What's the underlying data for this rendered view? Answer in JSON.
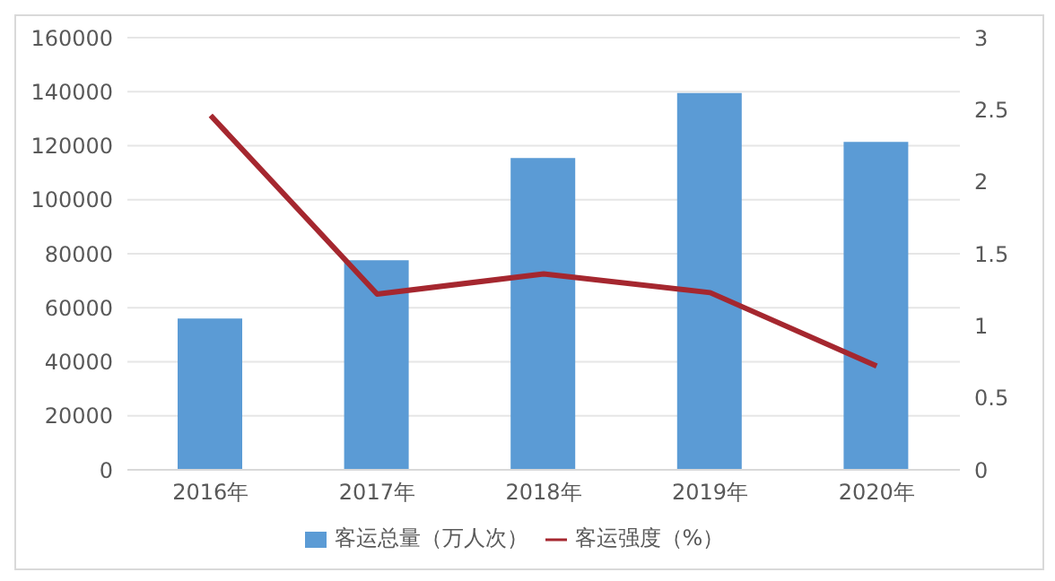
{
  "chart_data": {
    "type": "bar",
    "categories": [
      "2016年",
      "2017年",
      "2018年",
      "2019年",
      "2020年"
    ],
    "series": [
      {
        "name": "客运总量（万人次）",
        "color": "#5b9bd5",
        "values": [
          56000,
          77600,
          115400,
          139500,
          121400
        ]
      },
      {
        "name": "客运强度（%）",
        "type": "line",
        "axis": "y2",
        "color": "#a5272f",
        "values": [
          2.46,
          1.22,
          1.36,
          1.23,
          0.72
        ]
      }
    ],
    "ylim": [
      0,
      160000
    ],
    "yticks": [
      0,
      20000,
      40000,
      60000,
      80000,
      100000,
      120000,
      140000,
      160000
    ],
    "y2lim": [
      0,
      3
    ],
    "y2ticks": [
      0,
      0.5,
      1,
      1.5,
      2,
      2.5,
      3
    ],
    "grid": "y",
    "legend": "bottom",
    "marker": "none"
  }
}
